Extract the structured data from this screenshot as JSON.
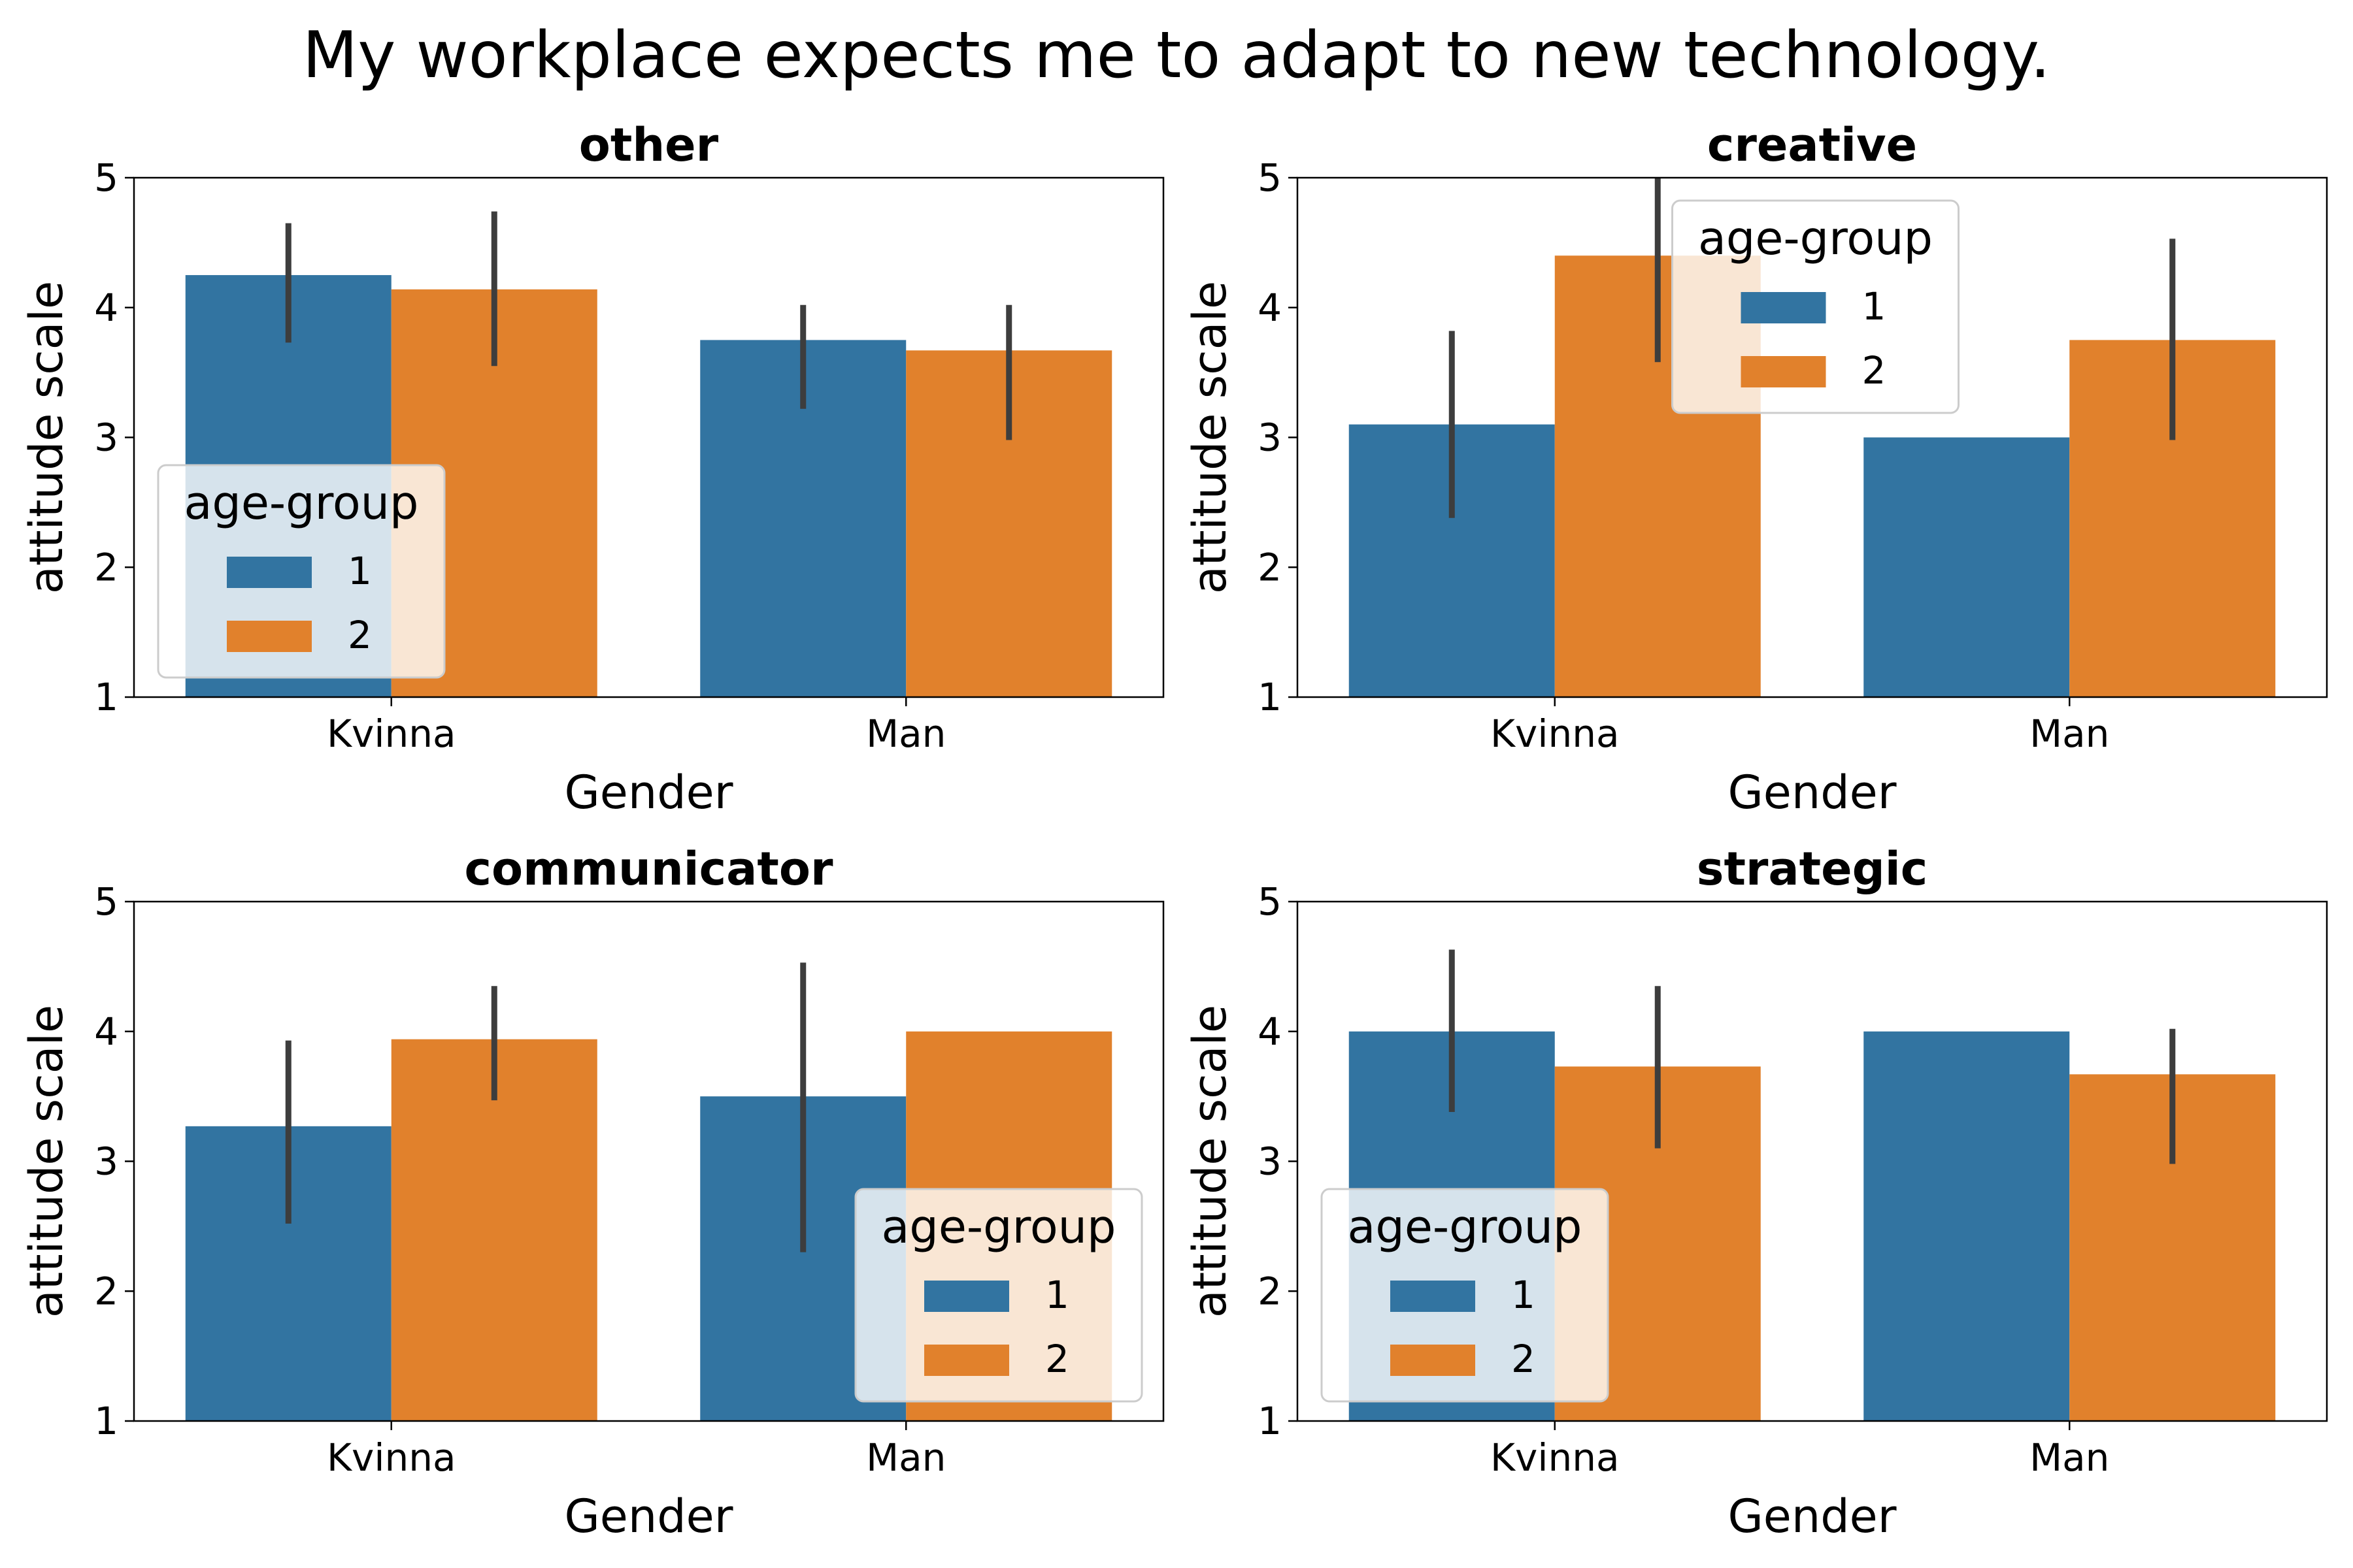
{
  "figure": {
    "suptitle": "My workplace expects me to adapt to new technology."
  },
  "colors": {
    "group_1": "#3274a1",
    "group_2": "#e1812c",
    "errorbar": "#3d3d3d"
  },
  "chart_data": [
    {
      "type": "bar",
      "title": "other",
      "xlabel": "Gender",
      "ylabel": "attitude scale",
      "categories": [
        "Kvinna",
        "Man"
      ],
      "ylim": [
        1,
        5
      ],
      "yticks": [
        1,
        2,
        3,
        4,
        5
      ],
      "series": [
        {
          "name": "1",
          "values": [
            4.25,
            3.75
          ],
          "ci": [
            [
              3.73,
              4.65
            ],
            [
              3.22,
              4.02
            ]
          ]
        },
        {
          "name": "2",
          "values": [
            4.14,
            3.67
          ],
          "ci": [
            [
              3.55,
              4.74
            ],
            [
              2.98,
              4.02
            ]
          ]
        }
      ],
      "legend": {
        "title": "age-group",
        "placement": "lower-left"
      }
    },
    {
      "type": "bar",
      "title": "creative",
      "xlabel": "Gender",
      "ylabel": "attitude scale",
      "categories": [
        "Kvinna",
        "Man"
      ],
      "ylim": [
        1,
        5
      ],
      "yticks": [
        1,
        2,
        3,
        4,
        5
      ],
      "series": [
        {
          "name": "1",
          "values": [
            3.1,
            3.0
          ],
          "ci": [
            [
              2.38,
              3.82
            ],
            null
          ]
        },
        {
          "name": "2",
          "values": [
            4.4,
            3.75
          ],
          "ci": [
            [
              3.58,
              5.0
            ],
            [
              2.98,
              4.53
            ]
          ]
        }
      ],
      "legend": {
        "title": "age-group",
        "placement": "upper-center"
      }
    },
    {
      "type": "bar",
      "title": "communicator",
      "xlabel": "Gender",
      "ylabel": "attitude scale",
      "categories": [
        "Kvinna",
        "Man"
      ],
      "ylim": [
        1,
        5
      ],
      "yticks": [
        1,
        2,
        3,
        4,
        5
      ],
      "series": [
        {
          "name": "1",
          "values": [
            3.27,
            3.5
          ],
          "ci": [
            [
              2.52,
              3.93
            ],
            [
              2.3,
              4.53
            ]
          ]
        },
        {
          "name": "2",
          "values": [
            3.94,
            4.0
          ],
          "ci": [
            [
              3.47,
              4.35
            ],
            null
          ]
        }
      ],
      "legend": {
        "title": "age-group",
        "placement": "lower-right"
      }
    },
    {
      "type": "bar",
      "title": "strategic",
      "xlabel": "Gender",
      "ylabel": "attitude scale",
      "categories": [
        "Kvinna",
        "Man"
      ],
      "ylim": [
        1,
        5
      ],
      "yticks": [
        1,
        2,
        3,
        4,
        5
      ],
      "series": [
        {
          "name": "1",
          "values": [
            4.0,
            4.0
          ],
          "ci": [
            [
              3.38,
              4.63
            ],
            null
          ]
        },
        {
          "name": "2",
          "values": [
            3.73,
            3.67
          ],
          "ci": [
            [
              3.1,
              4.35
            ],
            [
              2.98,
              4.02
            ]
          ]
        }
      ],
      "legend": {
        "title": "age-group",
        "placement": "lower-left"
      }
    }
  ]
}
